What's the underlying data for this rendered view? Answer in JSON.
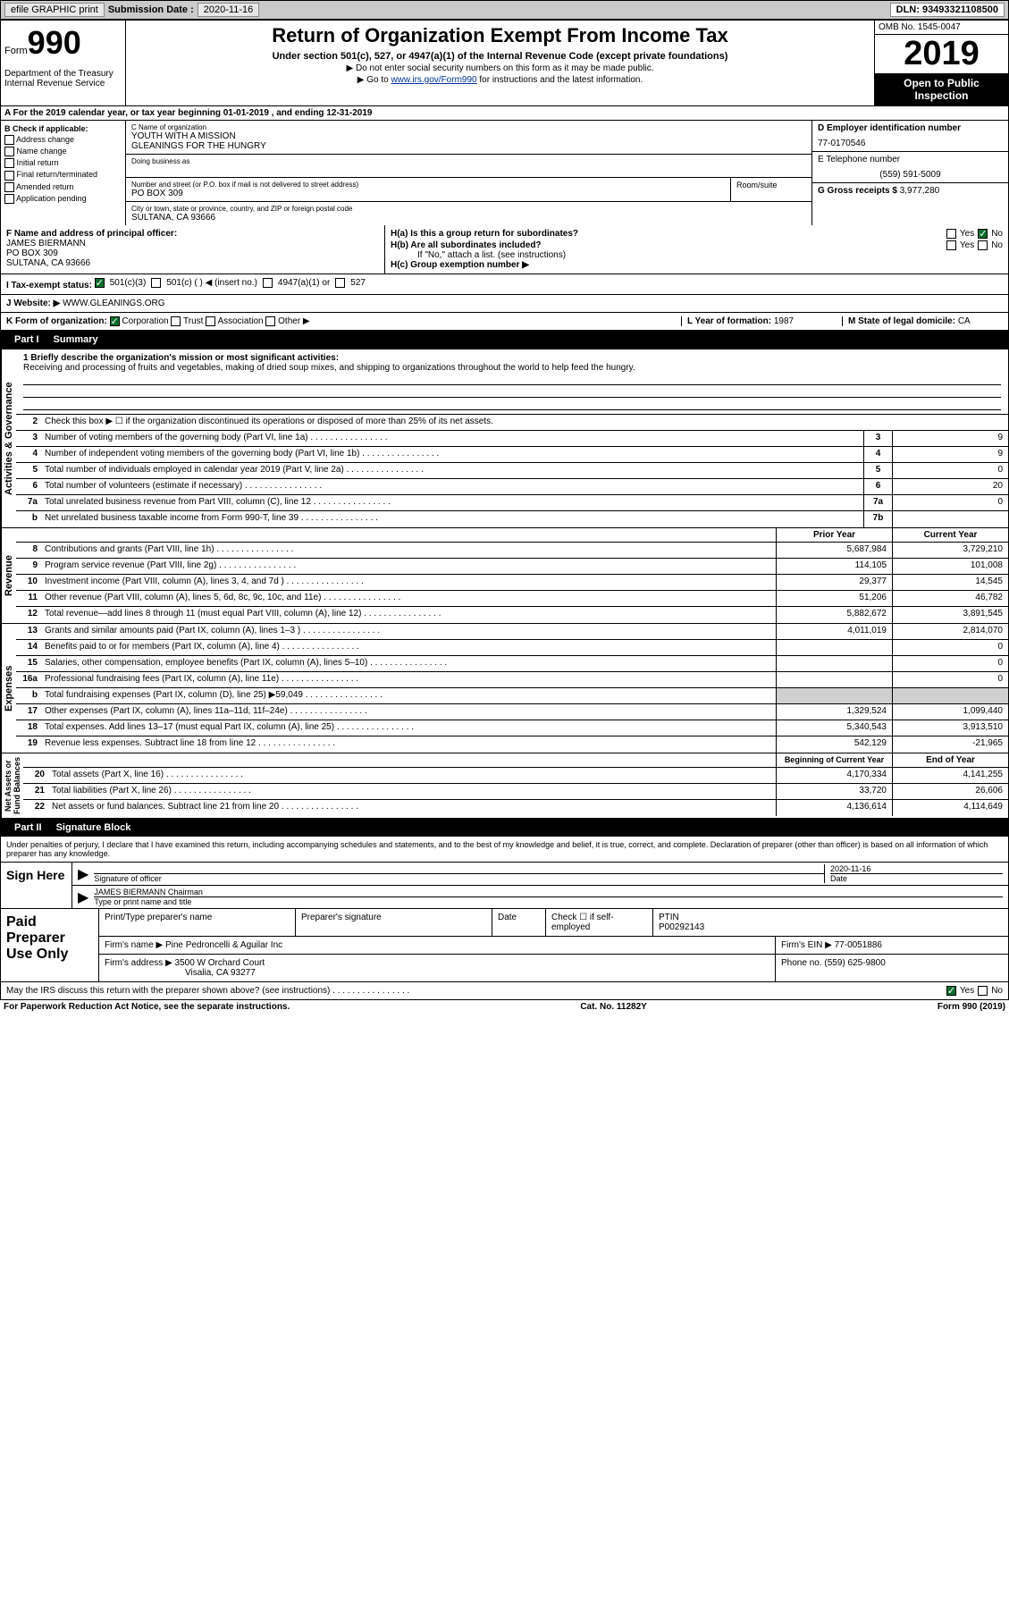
{
  "top": {
    "efile": "efile GRAPHIC print",
    "sub_label": "Submission Date :",
    "sub_date": "2020-11-16",
    "dln": "DLN: 93493321108500"
  },
  "header": {
    "form_word": "Form",
    "form_num": "990",
    "dept": "Department of the Treasury\nInternal Revenue Service",
    "title": "Return of Organization Exempt From Income Tax",
    "sub1": "Under section 501(c), 527, or 4947(a)(1) of the Internal Revenue Code (except private foundations)",
    "hint1": "▶ Do not enter social security numbers on this form as it may be made public.",
    "hint2_pre": "▶ Go to ",
    "hint2_link": "www.irs.gov/Form990",
    "hint2_post": " for instructions and the latest information.",
    "omb": "OMB No. 1545-0047",
    "year": "2019",
    "inspect": "Open to Public Inspection"
  },
  "row_a": "A  For the 2019 calendar year, or tax year beginning 01-01-2019    , and ending 12-31-2019",
  "col_b": {
    "label": "B Check if applicable:",
    "items": [
      "Address change",
      "Name change",
      "Initial return",
      "Final return/terminated",
      "Amended return",
      "Application pending"
    ]
  },
  "col_c": {
    "name_label": "C Name of organization",
    "name1": "YOUTH WITH A MISSION",
    "name2": "GLEANINGS FOR THE HUNGRY",
    "dba_label": "Doing business as",
    "addr_label": "Number and street (or P.O. box if mail is not delivered to street address)",
    "room_label": "Room/suite",
    "addr": "PO BOX 309",
    "city_label": "City or town, state or province, country, and ZIP or foreign postal code",
    "city": "SULTANA, CA  93666"
  },
  "col_d": {
    "ein_label": "D Employer identification number",
    "ein": "77-0170546",
    "tel_label": "E Telephone number",
    "tel": "(559) 591-5009",
    "gross_label": "G Gross receipts $",
    "gross": "3,977,280"
  },
  "row_f": {
    "label": "F  Name and address of principal officer:",
    "name": "JAMES BIERMANN",
    "addr1": "PO BOX 309",
    "addr2": "SULTANA, CA  93666"
  },
  "row_h": {
    "ha": "H(a)  Is this a group return for subordinates?",
    "hb": "H(b)  Are all subordinates included?",
    "hb_note": "If \"No,\" attach a list. (see instructions)",
    "hc": "H(c)  Group exemption number ▶"
  },
  "row_i": {
    "label": "I    Tax-exempt status:",
    "opts": [
      "501(c)(3)",
      "501(c) (  ) ◀ (insert no.)",
      "4947(a)(1) or",
      "527"
    ]
  },
  "row_j": {
    "label": "J    Website: ▶",
    "val": "WWW.GLEANINGS.ORG"
  },
  "row_k": {
    "label": "K Form of organization:",
    "opts": [
      "Corporation",
      "Trust",
      "Association",
      "Other ▶"
    ],
    "l_label": "L Year of formation:",
    "l_val": "1987",
    "m_label": "M State of legal domicile:",
    "m_val": "CA"
  },
  "part1": {
    "num": "Part I",
    "title": "Summary"
  },
  "mission": {
    "label": "1  Briefly describe the organization's mission or most significant activities:",
    "text": "Receiving and processing of fruits and vegetables, making of dried soup mixes, and shipping to organizations throughout the world to help feed the hungry."
  },
  "line2": "Check this box ▶ ☐  if the organization discontinued its operations or disposed of more than 25% of its net assets.",
  "governance_lines": [
    {
      "n": "3",
      "t": "Number of voting members of the governing body (Part VI, line 1a)",
      "box": "3",
      "v": "9"
    },
    {
      "n": "4",
      "t": "Number of independent voting members of the governing body (Part VI, line 1b)",
      "box": "4",
      "v": "9"
    },
    {
      "n": "5",
      "t": "Total number of individuals employed in calendar year 2019 (Part V, line 2a)",
      "box": "5",
      "v": "0"
    },
    {
      "n": "6",
      "t": "Total number of volunteers (estimate if necessary)",
      "box": "6",
      "v": "20"
    },
    {
      "n": "7a",
      "t": "Total unrelated business revenue from Part VIII, column (C), line 12",
      "box": "7a",
      "v": "0"
    },
    {
      "n": "b",
      "t": "Net unrelated business taxable income from Form 990-T, line 39",
      "box": "7b",
      "v": ""
    }
  ],
  "py_label": "Prior Year",
  "cy_label": "Current Year",
  "revenue_lines": [
    {
      "n": "8",
      "t": "Contributions and grants (Part VIII, line 1h)",
      "py": "5,687,984",
      "cy": "3,729,210"
    },
    {
      "n": "9",
      "t": "Program service revenue (Part VIII, line 2g)",
      "py": "114,105",
      "cy": "101,008"
    },
    {
      "n": "10",
      "t": "Investment income (Part VIII, column (A), lines 3, 4, and 7d )",
      "py": "29,377",
      "cy": "14,545"
    },
    {
      "n": "11",
      "t": "Other revenue (Part VIII, column (A), lines 5, 6d, 8c, 9c, 10c, and 11e)",
      "py": "51,206",
      "cy": "46,782"
    },
    {
      "n": "12",
      "t": "Total revenue—add lines 8 through 11 (must equal Part VIII, column (A), line 12)",
      "py": "5,882,672",
      "cy": "3,891,545"
    }
  ],
  "expense_lines": [
    {
      "n": "13",
      "t": "Grants and similar amounts paid (Part IX, column (A), lines 1–3 )",
      "py": "4,011,019",
      "cy": "2,814,070"
    },
    {
      "n": "14",
      "t": "Benefits paid to or for members (Part IX, column (A), line 4)",
      "py": "",
      "cy": "0"
    },
    {
      "n": "15",
      "t": "Salaries, other compensation, employee benefits (Part IX, column (A), lines 5–10)",
      "py": "",
      "cy": "0"
    },
    {
      "n": "16a",
      "t": "Professional fundraising fees (Part IX, column (A), line 11e)",
      "py": "",
      "cy": "0"
    },
    {
      "n": "b",
      "t": "Total fundraising expenses (Part IX, column (D), line 25) ▶59,049",
      "py": "shaded",
      "cy": "shaded"
    },
    {
      "n": "17",
      "t": "Other expenses (Part IX, column (A), lines 11a–11d, 11f–24e)",
      "py": "1,329,524",
      "cy": "1,099,440"
    },
    {
      "n": "18",
      "t": "Total expenses. Add lines 13–17 (must equal Part IX, column (A), line 25)",
      "py": "5,340,543",
      "cy": "3,913,510"
    },
    {
      "n": "19",
      "t": "Revenue less expenses. Subtract line 18 from line 12",
      "py": "542,129",
      "cy": "-21,965"
    }
  ],
  "bcy_label": "Beginning of Current Year",
  "eoy_label": "End of Year",
  "net_lines": [
    {
      "n": "20",
      "t": "Total assets (Part X, line 16)",
      "py": "4,170,334",
      "cy": "4,141,255"
    },
    {
      "n": "21",
      "t": "Total liabilities (Part X, line 26)",
      "py": "33,720",
      "cy": "26,606"
    },
    {
      "n": "22",
      "t": "Net assets or fund balances. Subtract line 21 from line 20",
      "py": "4,136,614",
      "cy": "4,114,649"
    }
  ],
  "part2": {
    "num": "Part II",
    "title": "Signature Block"
  },
  "sig_decl": "Under penalties of perjury, I declare that I have examined this return, including accompanying schedules and statements, and to the best of my knowledge and belief, it is true, correct, and complete. Declaration of preparer (other than officer) is based on all information of which preparer has any knowledge.",
  "sign_here": "Sign Here",
  "sig_officer_label": "Signature of officer",
  "sig_date_label": "Date",
  "sig_date": "2020-11-16",
  "sig_name": "JAMES BIERMANN Chairman",
  "sig_name_label": "Type or print name and title",
  "paid_prep": "Paid Preparer Use Only",
  "prep": {
    "name_label": "Print/Type preparer's name",
    "sig_label": "Preparer's signature",
    "date_label": "Date",
    "check_label": "Check ☐ if self-employed",
    "ptin_label": "PTIN",
    "ptin": "P00292143",
    "firm_name_label": "Firm's name    ▶",
    "firm_name": "Pine Pedroncelli & Aguilar Inc",
    "firm_ein_label": "Firm's EIN ▶",
    "firm_ein": "77-0051886",
    "firm_addr_label": "Firm's address ▶",
    "firm_addr1": "3500 W Orchard Court",
    "firm_addr2": "Visalia, CA  93277",
    "phone_label": "Phone no.",
    "phone": "(559) 625-9800"
  },
  "discuss": "May the IRS discuss this return with the preparer shown above? (see instructions)",
  "footer": {
    "pra": "For Paperwork Reduction Act Notice, see the separate instructions.",
    "cat": "Cat. No. 11282Y",
    "form": "Form 990 (2019)"
  },
  "colors": {
    "check_green": "#0a6e2e",
    "link_blue": "#003399",
    "shaded": "#d0d0d0",
    "topbar": "#cacaca"
  }
}
